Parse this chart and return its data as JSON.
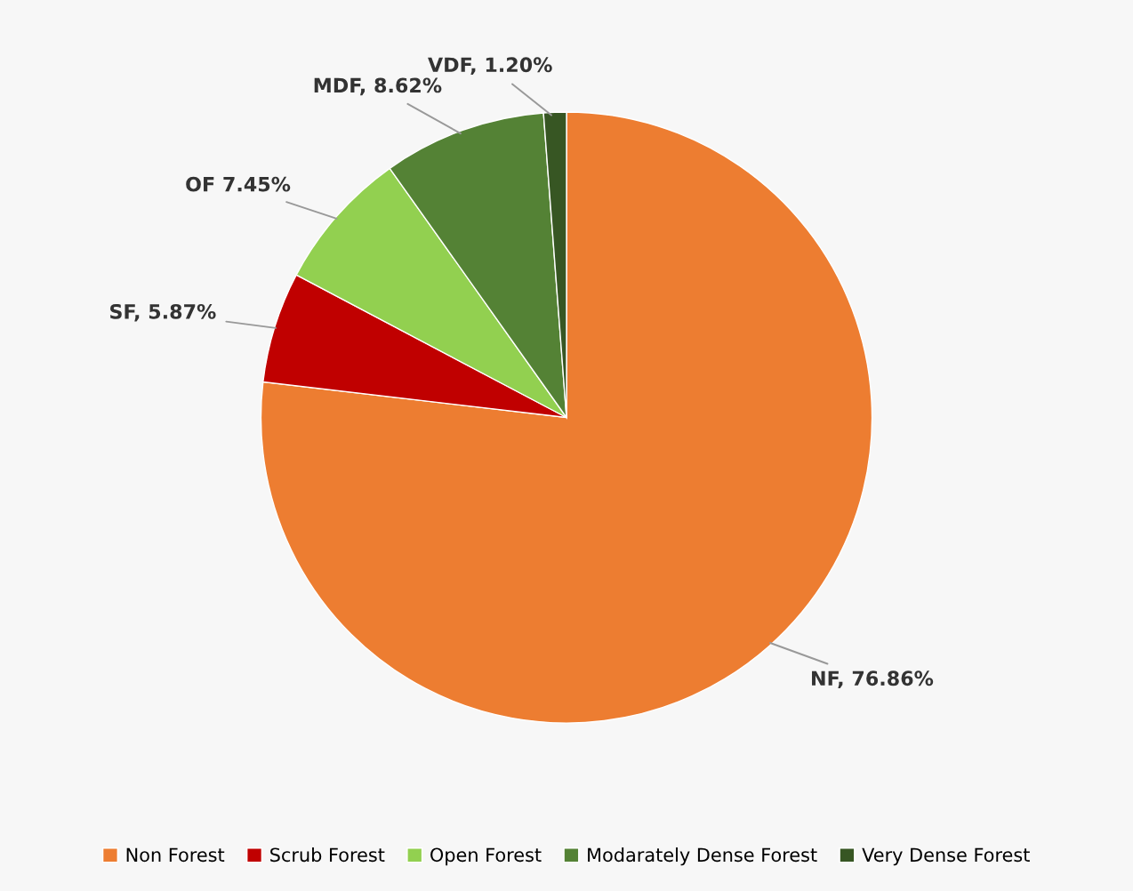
{
  "chart_data": {
    "type": "pie",
    "categories": [
      "Non Forest",
      "Scrub Forest",
      "Open Forest",
      "Modarately Dense Forest",
      "Very Dense Forest"
    ],
    "values": [
      76.86,
      5.87,
      7.45,
      8.62,
      1.2
    ],
    "value_labels": [
      "NF, 76.86%",
      "SF, 5.87%",
      "OF 7.45%",
      "MDF, 8.62%",
      "VDF, 1.20%"
    ],
    "colors": [
      "#ed7d31",
      "#c00000",
      "#92d050",
      "#548235",
      "#375623"
    ],
    "legend": "bottom"
  }
}
